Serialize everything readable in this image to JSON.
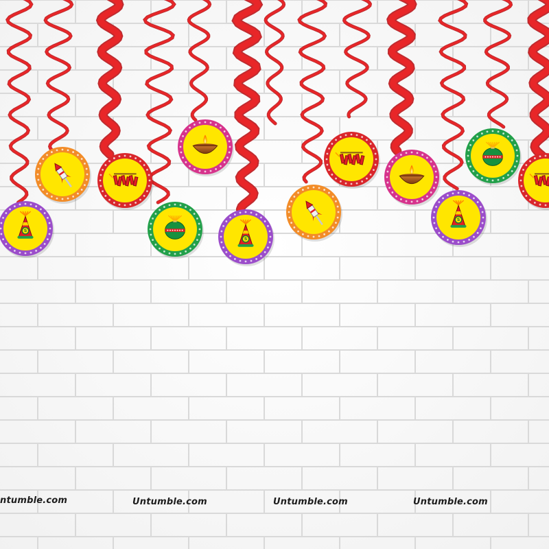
{
  "scene": {
    "description_colors": {
      "wall": "#f6f6f6",
      "mortar": "#d9d9d9",
      "ribbon": "#e82628",
      "ribbon_dark": "#b9151a",
      "disc_yellow": "#ffe600",
      "border_orange": "#f28c28",
      "border_purple": "#9b4dca",
      "border_red": "#d9262b",
      "border_green": "#22a04a",
      "border_magenta": "#d6338c"
    },
    "ornaments": [
      {
        "name": "cone-firecracker-ornament",
        "icon": "cone-cracker-icon"
      },
      {
        "name": "rocket-ornament",
        "icon": "rocket-icon"
      },
      {
        "name": "cracker-string-ornament",
        "icon": "cracker-string-icon"
      },
      {
        "name": "anar-ornament",
        "icon": "anar-icon"
      },
      {
        "name": "diya-ornament",
        "icon": "diya-icon"
      },
      {
        "name": "cone-firecracker-ornament",
        "icon": "cone-cracker-icon"
      },
      {
        "name": "rocket-ornament",
        "icon": "rocket-icon"
      },
      {
        "name": "cracker-string-ornament",
        "icon": "cracker-string-icon"
      },
      {
        "name": "diya-ornament",
        "icon": "diya-icon"
      },
      {
        "name": "cone-firecracker-ornament",
        "icon": "cone-cracker-icon"
      },
      {
        "name": "anar-ornament",
        "icon": "anar-icon"
      },
      {
        "name": "cracker-string-ornament",
        "icon": "cracker-string-icon"
      }
    ],
    "cone_label": "S"
  },
  "watermarks": [
    "ntumble.com",
    "Untumble.com",
    "Untumble.com",
    "Untumble.com"
  ]
}
